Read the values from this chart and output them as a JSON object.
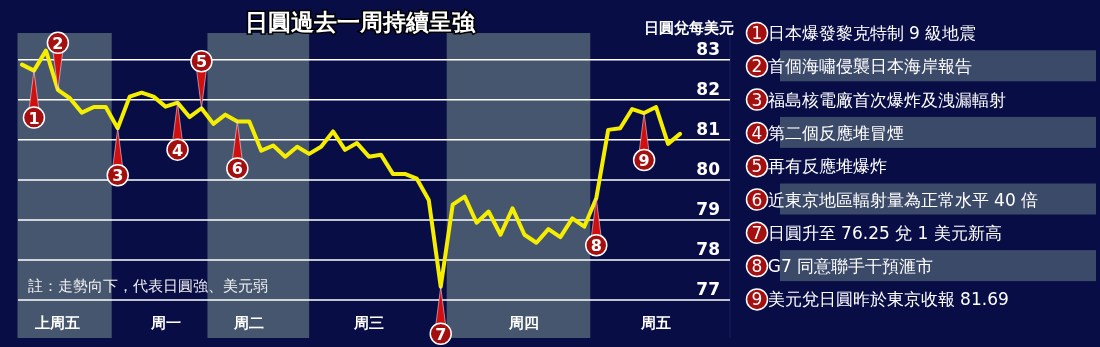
{
  "chart_data": {
    "type": "line",
    "title": "日圓過去一周持續呈強",
    "ylabel": "日圓兌每美元",
    "color": "#f5ee00",
    "grid": "y",
    "categories": [
      null,
      null,
      null,
      "上周五",
      null,
      null,
      null,
      null,
      null,
      null,
      null,
      null,
      "周一",
      null,
      null,
      null,
      null,
      null,
      null,
      "周二",
      null,
      null,
      null,
      null,
      null,
      null,
      null,
      null,
      null,
      "周三",
      null,
      null,
      null,
      null,
      null,
      null,
      null,
      null,
      null,
      null,
      null,
      null,
      "周四",
      null,
      null,
      null,
      null,
      null,
      null,
      null,
      null,
      null,
      null,
      "周五",
      null,
      null
    ],
    "values": [
      82.88,
      82.73,
      83.23,
      82.25,
      82.04,
      81.68,
      81.82,
      81.82,
      81.29,
      82.08,
      82.18,
      82.08,
      81.83,
      81.93,
      81.57,
      81.79,
      81.4,
      81.63,
      81.46,
      81.46,
      80.73,
      80.86,
      80.58,
      80.83,
      80.65,
      80.83,
      81.21,
      80.75,
      80.92,
      80.58,
      80.63,
      80.15,
      80.15,
      80.03,
      79.5,
      77.33,
      79.38,
      79.58,
      78.93,
      79.21,
      78.63,
      79.29,
      78.63,
      78.43,
      78.77,
      78.57,
      79.04,
      78.83,
      79.54,
      81.25,
      81.29,
      81.77,
      81.67,
      81.82,
      80.9,
      81.15
    ],
    "ylim": [
      76.05,
      83.67
    ],
    "yticks": [
      77,
      78,
      79,
      80,
      81,
      82,
      83
    ],
    "annotations": [
      "註：走勢向下，代表日圓強、美元弱",
      {
        "text": "1",
        "y": 82.73
      },
      {
        "text": "2",
        "y": 82.25
      },
      {
        "text": "3",
        "y": 81.29
      },
      {
        "text": "4",
        "y": 81.93
      },
      {
        "text": "5",
        "y": 81.79
      },
      {
        "text": "6",
        "y": 81.46
      },
      {
        "text": "7",
        "y": 77.33
      },
      {
        "text": "8",
        "y": 79.54
      },
      {
        "text": "9",
        "y": 81.67
      },
      "1 日本爆發黎克特制 9 級地震",
      "2 首個海嘯侵襲日本海岸報告",
      "3 福島核電廠首次爆炸及洩漏輻射",
      "4 第二個反應堆冒煙",
      "5 再有反應堆爆炸",
      "6 近東京地區輻射量為正常水平 40 倍",
      "7 日圓升至 76.25 兌 1 美元新高",
      "8 G7 同意聯手干預滙市",
      "9 美元兌日圓昨於東京收報 81.69"
    ]
  }
}
